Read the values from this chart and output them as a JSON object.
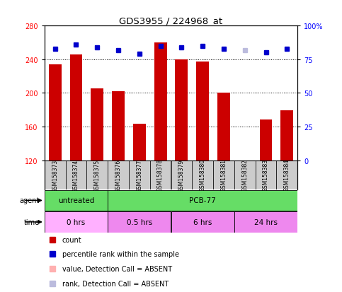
{
  "title": "GDS3955 / 224968_at",
  "samples": [
    "GSM158373",
    "GSM158374",
    "GSM158375",
    "GSM158376",
    "GSM158377",
    "GSM158378",
    "GSM158379",
    "GSM158380",
    "GSM158381",
    "GSM158382",
    "GSM158383",
    "GSM158384"
  ],
  "bar_values": [
    234,
    246,
    205,
    202,
    163,
    260,
    240,
    237,
    200,
    120,
    168,
    179
  ],
  "bar_absent": [
    false,
    false,
    false,
    false,
    false,
    false,
    false,
    false,
    false,
    true,
    false,
    false
  ],
  "rank_values": [
    83,
    86,
    84,
    82,
    79,
    85,
    84,
    85,
    83,
    82,
    80,
    83
  ],
  "rank_absent": [
    false,
    false,
    false,
    false,
    false,
    false,
    false,
    false,
    false,
    true,
    false,
    false
  ],
  "ylim_left": [
    120,
    280
  ],
  "ylim_right": [
    0,
    100
  ],
  "yticks_left": [
    120,
    160,
    200,
    240,
    280
  ],
  "yticks_right": [
    0,
    25,
    50,
    75,
    100
  ],
  "ytick_right_labels": [
    "0",
    "25",
    "50",
    "75",
    "100%"
  ],
  "bar_color": "#CC0000",
  "bar_absent_color": "#FFB0B0",
  "rank_color": "#0000CC",
  "rank_absent_color": "#BBBBDD",
  "background_color": "#FFFFFF",
  "grid_color": "#000000",
  "bar_width": 0.6,
  "agent_groups": [
    {
      "label": "untreated",
      "start": 0,
      "end": 3
    },
    {
      "label": "PCB-77",
      "start": 3,
      "end": 12
    }
  ],
  "agent_color": "#66DD66",
  "time_groups": [
    {
      "label": "0 hrs",
      "start": 0,
      "end": 3
    },
    {
      "label": "0.5 hrs",
      "start": 3,
      "end": 6
    },
    {
      "label": "6 hrs",
      "start": 6,
      "end": 9
    },
    {
      "label": "24 hrs",
      "start": 9,
      "end": 12
    }
  ],
  "time_color_light": "#FFB0FF",
  "time_color_dark": "#EE88EE",
  "sample_box_color": "#CCCCCC",
  "legend_items": [
    {
      "color": "#CC0000",
      "label": "count"
    },
    {
      "color": "#0000CC",
      "label": "percentile rank within the sample"
    },
    {
      "color": "#FFB0B0",
      "label": "value, Detection Call = ABSENT"
    },
    {
      "color": "#BBBBDD",
      "label": "rank, Detection Call = ABSENT"
    }
  ]
}
